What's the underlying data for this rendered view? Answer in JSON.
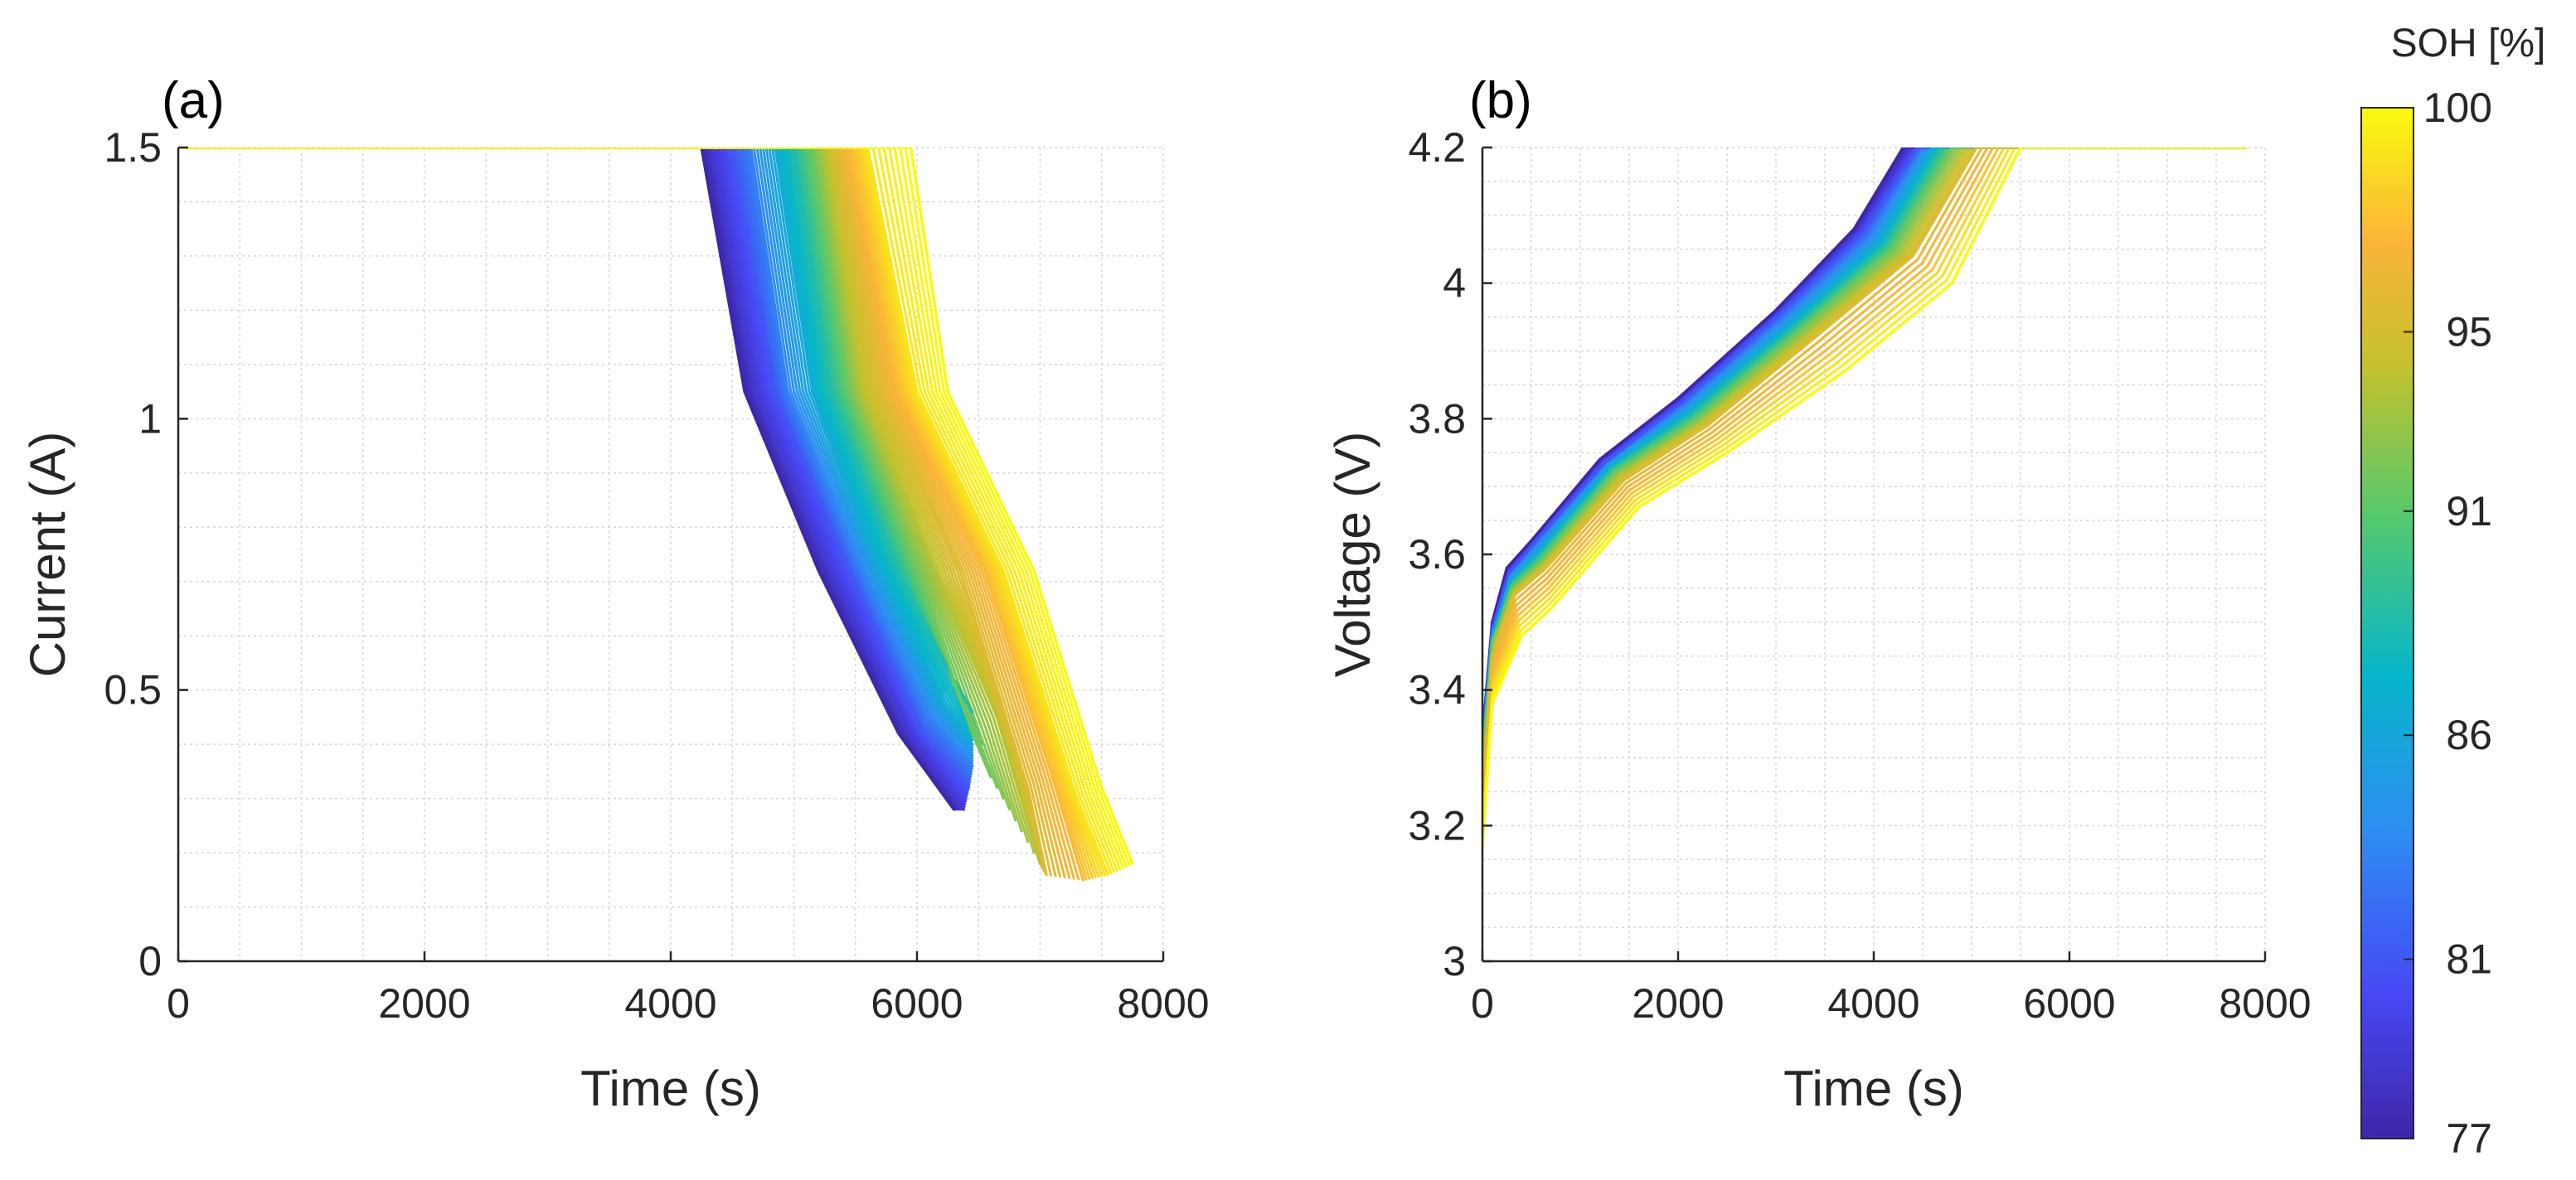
{
  "figure": {
    "colorbar": {
      "title": "SOH [%]",
      "ticks": [
        "77",
        "81",
        "86",
        "91",
        "95",
        "100"
      ],
      "range": [
        77,
        100
      ],
      "colormap": "parula",
      "colors": [
        "#3e26a8",
        "#4748f5",
        "#2d8ef2",
        "#07b6c9",
        "#53c86f",
        "#c5c12d",
        "#fab439",
        "#f9fb0e"
      ]
    },
    "panels": [
      {
        "id": "a",
        "label": "(a)",
        "xlabel": "Time (s)",
        "ylabel": "Current (A)",
        "xticks": [
          "0",
          "2000",
          "4000",
          "6000",
          "8000"
        ],
        "yticks": [
          "0",
          "0.5",
          "1",
          "1.5"
        ]
      },
      {
        "id": "b",
        "label": "(b)",
        "xlabel": "Time (s)",
        "ylabel": "Voltage (V)",
        "xticks": [
          "0",
          "2000",
          "4000",
          "6000",
          "8000"
        ],
        "yticks": [
          "3",
          "3.2",
          "3.4",
          "3.6",
          "3.8",
          "4",
          "4.2"
        ]
      }
    ]
  },
  "chart_data": [
    {
      "type": "line",
      "title": "(a)",
      "xlabel": "Time (s)",
      "ylabel": "Current (A)",
      "xlim": [
        0,
        8000
      ],
      "ylim": [
        0,
        1.5
      ],
      "grid": true,
      "color_by": "SOH [%]",
      "series": [
        {
          "name": "SOH 77",
          "soh": 77,
          "x": [
            0,
            4250,
            4600,
            5200,
            5850,
            6300
          ],
          "y": [
            1.5,
            1.5,
            1.05,
            0.72,
            0.42,
            0.28
          ]
        },
        {
          "name": "SOH 79",
          "soh": 79,
          "x": [
            0,
            4350,
            4700,
            5300,
            5950,
            6380
          ],
          "y": [
            1.5,
            1.5,
            1.05,
            0.72,
            0.42,
            0.28
          ]
        },
        {
          "name": "SOH 81",
          "soh": 81,
          "x": [
            0,
            4500,
            4850,
            5450,
            6050,
            6420
          ],
          "y": [
            1.5,
            1.5,
            1.05,
            0.72,
            0.42,
            0.32
          ]
        },
        {
          "name": "SOH 83",
          "soh": 83,
          "x": [
            0,
            4650,
            4950,
            5550,
            6100,
            6450
          ],
          "y": [
            1.5,
            1.5,
            1.05,
            0.72,
            0.45,
            0.36
          ]
        },
        {
          "name": "SOH 86",
          "soh": 86,
          "x": [
            0,
            4850,
            5150,
            5700,
            6200,
            6450
          ],
          "y": [
            1.5,
            1.5,
            1.05,
            0.72,
            0.48,
            0.4
          ]
        },
        {
          "name": "SOH 88",
          "soh": 88,
          "x": [
            0,
            5000,
            5300,
            5850,
            6300,
            6450
          ],
          "y": [
            1.5,
            1.5,
            1.05,
            0.72,
            0.52,
            0.46
          ]
        },
        {
          "name": "SOH 91",
          "soh": 91,
          "x": [
            0,
            5150,
            5450,
            6000,
            6450,
            6600
          ],
          "y": [
            1.5,
            1.5,
            1.05,
            0.72,
            0.42,
            0.34
          ]
        },
        {
          "name": "SOH 93",
          "soh": 93,
          "x": [
            0,
            5250,
            5550,
            6150,
            6650,
            7000
          ],
          "y": [
            1.5,
            1.5,
            1.05,
            0.72,
            0.45,
            0.18
          ]
        },
        {
          "name": "SOH 95",
          "soh": 95,
          "x": [
            0,
            5350,
            5700,
            6350,
            6900,
            7050
          ],
          "y": [
            1.5,
            1.5,
            1.05,
            0.72,
            0.32,
            0.16
          ]
        },
        {
          "name": "SOH 97",
          "soh": 97,
          "x": [
            0,
            5450,
            5850,
            6550,
            7100,
            7350
          ],
          "y": [
            1.5,
            1.5,
            1.05,
            0.72,
            0.34,
            0.15
          ]
        },
        {
          "name": "SOH 99",
          "soh": 99,
          "x": [
            0,
            5600,
            6000,
            6700,
            7300,
            7550
          ],
          "y": [
            1.5,
            1.5,
            1.05,
            0.72,
            0.3,
            0.16
          ]
        },
        {
          "name": "SOH 100",
          "soh": 100,
          "x": [
            0,
            5950,
            6250,
            6950,
            7500,
            7750
          ],
          "y": [
            1.5,
            1.5,
            1.05,
            0.72,
            0.32,
            0.18
          ]
        }
      ]
    },
    {
      "type": "line",
      "title": "(b)",
      "xlabel": "Time (s)",
      "ylabel": "Voltage (V)",
      "xlim": [
        0,
        8000
      ],
      "ylim": [
        3,
        4.2
      ],
      "grid": true,
      "color_by": "SOH [%]",
      "series": [
        {
          "name": "SOH 77",
          "soh": 77,
          "x": [
            0,
            100,
            250,
            500,
            1200,
            2000,
            3000,
            3800,
            4300,
            7800
          ],
          "y": [
            3.33,
            3.5,
            3.58,
            3.62,
            3.74,
            3.83,
            3.96,
            4.08,
            4.2,
            4.2
          ]
        },
        {
          "name": "SOH 81",
          "soh": 81,
          "x": [
            0,
            100,
            260,
            520,
            1250,
            2050,
            3050,
            3900,
            4450,
            7800
          ],
          "y": [
            3.32,
            3.49,
            3.57,
            3.615,
            3.735,
            3.825,
            3.955,
            4.075,
            4.2,
            4.2
          ]
        },
        {
          "name": "SOH 86",
          "soh": 86,
          "x": [
            0,
            100,
            280,
            550,
            1300,
            2100,
            3150,
            4050,
            4600,
            7800
          ],
          "y": [
            3.31,
            3.48,
            3.56,
            3.6,
            3.73,
            3.81,
            3.94,
            4.06,
            4.2,
            4.2
          ]
        },
        {
          "name": "SOH 91",
          "soh": 91,
          "x": [
            0,
            100,
            300,
            600,
            1350,
            2200,
            3250,
            4200,
            4800,
            7800
          ],
          "y": [
            3.29,
            3.47,
            3.55,
            3.59,
            3.72,
            3.8,
            3.93,
            4.05,
            4.2,
            4.2
          ]
        },
        {
          "name": "SOH 95",
          "soh": 95,
          "x": [
            0,
            100,
            330,
            650,
            1450,
            2300,
            3400,
            4400,
            5050,
            7800
          ],
          "y": [
            3.25,
            3.45,
            3.54,
            3.58,
            3.71,
            3.79,
            3.92,
            4.04,
            4.2,
            4.2
          ]
        },
        {
          "name": "SOH 100",
          "soh": 100,
          "x": [
            0,
            100,
            400,
            700,
            1600,
            2500,
            3700,
            4800,
            5500,
            7800
          ],
          "y": [
            3.17,
            3.38,
            3.48,
            3.52,
            3.67,
            3.75,
            3.87,
            4.0,
            4.2,
            4.2
          ]
        }
      ]
    }
  ]
}
